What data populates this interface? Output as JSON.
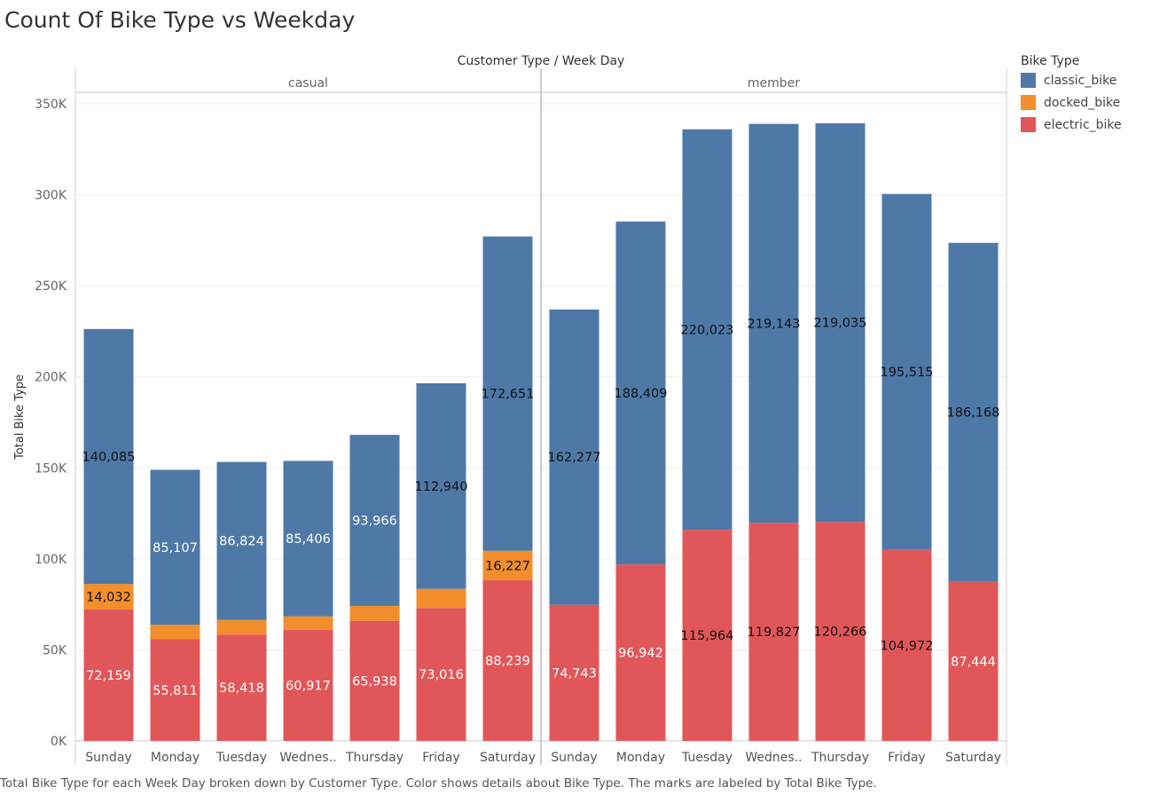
{
  "title": "Count Of Bike Type vs Weekday",
  "caption": "Total Bike Type for each Week Day broken down by Customer Type.  Color shows details about Bike Type.  The marks are labeled by Total Bike Type.",
  "legend": {
    "title": "Bike Type",
    "items": [
      {
        "label": "classic_bike",
        "color": "#4e79a7"
      },
      {
        "label": "docked_bike",
        "color": "#f28e2b"
      },
      {
        "label": "electric_bike",
        "color": "#e15759"
      }
    ]
  },
  "chart_data": {
    "type": "bar",
    "stacked": true,
    "title": "Count Of Bike Type vs Weekday",
    "top_header": "Customer Type  /  Week Day",
    "ylabel": "Total Bike Type",
    "ylim": [
      0,
      350000
    ],
    "yticks": [
      0,
      50000,
      100000,
      150000,
      200000,
      250000,
      300000,
      350000
    ],
    "ytick_labels": [
      "0K",
      "50K",
      "100K",
      "150K",
      "200K",
      "250K",
      "300K",
      "350K"
    ],
    "grid": true,
    "legend_position": "right",
    "categories": [
      "Sunday",
      "Monday",
      "Tuesday",
      "Wednes..",
      "Thursday",
      "Friday",
      "Saturday"
    ],
    "panels": [
      {
        "name": "casual",
        "series": [
          {
            "name": "electric_bike",
            "values": [
              72159,
              55811,
              58418,
              60917,
              65938,
              73016,
              88239
            ],
            "labels": [
              "72,159",
              "55,811",
              "58,418",
              "60,917",
              "65,938",
              "73,016",
              "88,239"
            ]
          },
          {
            "name": "docked_bike",
            "values": [
              14032,
              8000,
              8000,
              7500,
              8200,
              10500,
              16227
            ],
            "labels": [
              "14,032",
              "",
              "",
              "",
              "",
              "",
              "16,227"
            ]
          },
          {
            "name": "classic_bike",
            "values": [
              140085,
              85107,
              86824,
              85406,
              93966,
              112940,
              172651
            ],
            "labels": [
              "140,085",
              "85,107",
              "86,824",
              "85,406",
              "93,966",
              "112,940",
              "172,651"
            ]
          }
        ]
      },
      {
        "name": "member",
        "series": [
          {
            "name": "electric_bike",
            "values": [
              74743,
              96942,
              115964,
              119827,
              120266,
              104972,
              87444
            ],
            "labels": [
              "74,743",
              "96,942",
              "115,964",
              "119,827",
              "120,266",
              "104,972",
              "87,444"
            ]
          },
          {
            "name": "docked_bike",
            "values": [
              0,
              0,
              0,
              0,
              0,
              0,
              0
            ],
            "labels": [
              "",
              "",
              "",
              "",
              "",
              "",
              ""
            ]
          },
          {
            "name": "classic_bike",
            "values": [
              162277,
              188409,
              220023,
              219143,
              219035,
              195515,
              186168
            ],
            "labels": [
              "162,277",
              "188,409",
              "220,023",
              "219,143",
              "219,035",
              "195,515",
              "186,168"
            ]
          }
        ]
      }
    ]
  }
}
